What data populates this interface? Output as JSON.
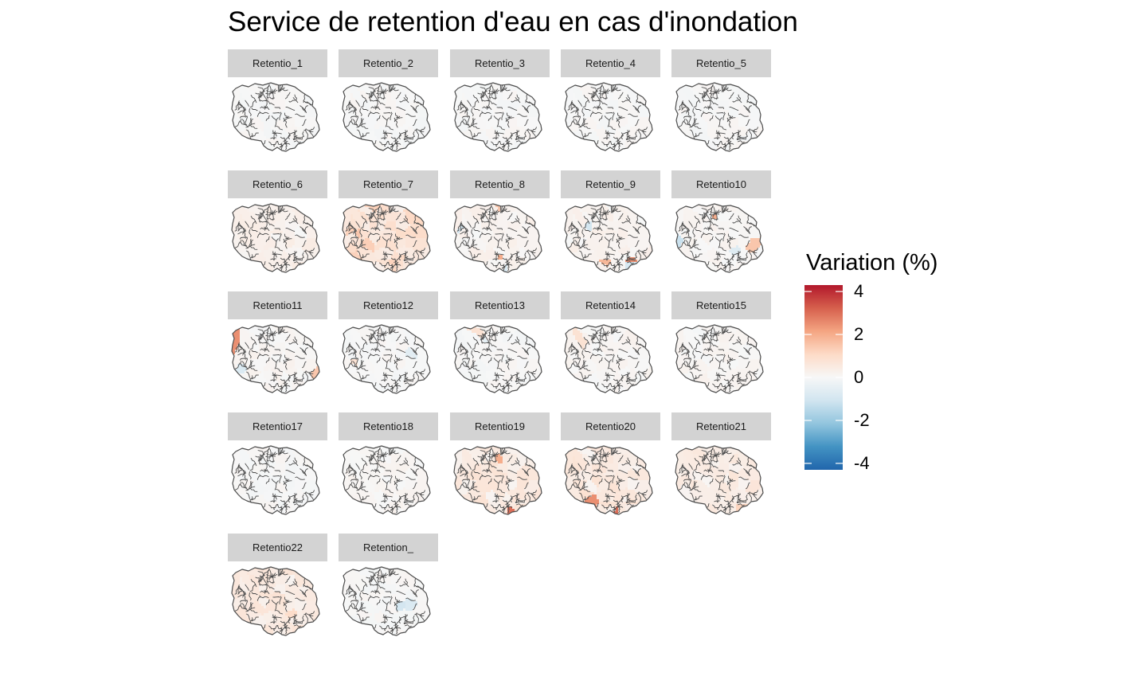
{
  "chart_data": {
    "type": "choropleth-facet",
    "title": "Service de retention d'eau en cas d'inondation",
    "legend": {
      "title": "Variation (%)",
      "range": [
        -4.3,
        4.3
      ],
      "ticks": [
        4,
        2,
        0,
        -2,
        -4
      ],
      "tick_labels": [
        "4",
        "2",
        "0",
        "-2",
        "-4"
      ],
      "colors": [
        "#2166ac",
        "#4393c3",
        "#92c5de",
        "#d1e5f0",
        "#f7f7f7",
        "#fddbc7",
        "#f4a582",
        "#d6604d",
        "#b2182b"
      ],
      "position": "right"
    },
    "panels": [
      {
        "name": "Retentio_1",
        "level": 0.0,
        "hotspots": []
      },
      {
        "name": "Retentio_2",
        "level": 0.0,
        "hotspots": []
      },
      {
        "name": "Retentio_3",
        "level": 0.0,
        "hotspots": []
      },
      {
        "name": "Retentio_4",
        "level": 0.0,
        "hotspots": []
      },
      {
        "name": "Retentio_5",
        "level": 0.0,
        "hotspots": []
      },
      {
        "name": "Retentio_6",
        "level": 0.3,
        "hotspots": []
      },
      {
        "name": "Retentio_7",
        "level": 1.0,
        "hotspots": [
          1.5,
          1.3
        ]
      },
      {
        "name": "Retentio_8",
        "level": 0.2,
        "hotspots": [
          2.0,
          -1.0,
          1.5,
          -0.8
        ]
      },
      {
        "name": "Retentio_9",
        "level": 0.2,
        "hotspots": [
          2.5,
          -1.0,
          1.8,
          -0.9
        ]
      },
      {
        "name": "Retentio10",
        "level": 0.1,
        "hotspots": [
          2.0,
          -1.2,
          1.5,
          -0.7
        ]
      },
      {
        "name": "Retentio11",
        "level": 0.1,
        "hotspots": [
          2.5,
          -0.8,
          1.5
        ]
      },
      {
        "name": "Retentio12",
        "level": 0.0,
        "hotspots": [
          -0.6,
          0.8
        ]
      },
      {
        "name": "Retentio13",
        "level": 0.0,
        "hotspots": [
          0.8,
          -0.5
        ]
      },
      {
        "name": "Retentio14",
        "level": 0.1,
        "hotspots": [
          0.8
        ]
      },
      {
        "name": "Retentio15",
        "level": 0.1,
        "hotspots": []
      },
      {
        "name": "Retentio17",
        "level": 0.0,
        "hotspots": []
      },
      {
        "name": "Retentio18",
        "level": 0.1,
        "hotspots": []
      },
      {
        "name": "Retentio19",
        "level": 0.6,
        "hotspots": [
          3.0,
          2.0
        ]
      },
      {
        "name": "Retentio20",
        "level": 0.6,
        "hotspots": [
          3.0,
          2.5
        ]
      },
      {
        "name": "Retentio21",
        "level": 0.5,
        "hotspots": [
          1.2
        ]
      },
      {
        "name": "Retentio22",
        "level": 0.6,
        "hotspots": [
          1.0
        ]
      },
      {
        "name": "Retention_",
        "level": 0.0,
        "hotspots": [
          -1.0,
          -0.8
        ]
      }
    ]
  }
}
